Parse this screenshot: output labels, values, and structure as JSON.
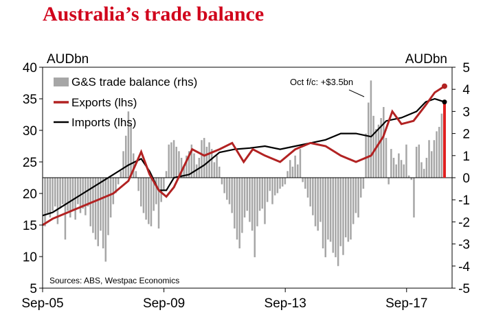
{
  "chart_data": {
    "type": "line",
    "title": "Australia’s trade balance",
    "left_unit": "AUDbn",
    "right_unit": "AUDbn",
    "left_ylim": [
      5,
      40
    ],
    "right_ylim": [
      -5,
      5
    ],
    "left_ticks": [
      "40",
      "35",
      "30",
      "25",
      "20",
      "15",
      "10",
      "5"
    ],
    "left_tick_values": [
      40,
      35,
      30,
      25,
      20,
      15,
      10,
      5
    ],
    "right_ticks": [
      "5",
      "4",
      "3",
      "2",
      "1",
      "0",
      "-1",
      "-2",
      "-3",
      "-4",
      "-5"
    ],
    "right_tick_values": [
      5,
      4,
      3,
      2,
      1,
      0,
      -1,
      -2,
      -3,
      -4,
      -5
    ],
    "x_range": [
      2005.67,
      2019.17
    ],
    "x_ticks": [
      "Sep-05",
      "Sep-09",
      "Sep-13",
      "Sep-17"
    ],
    "x_tick_values": [
      2005.67,
      2009.67,
      2013.67,
      2017.67
    ],
    "legend": {
      "balance": "G&S trade balance (rhs)",
      "exports": "Exports (lhs)",
      "imports": "Imports (lhs)"
    },
    "annotation": "Oct f/c: +$3.5bn",
    "source": "Sources: ABS, Westpac Economics",
    "colors": {
      "balance": "#a6a6a6",
      "exports": "#b22222",
      "imports": "#000000",
      "forecast": "#e02020",
      "title": "#d0021b"
    },
    "exports_series": [
      [
        2005.67,
        15.0
      ],
      [
        2006.0,
        16.0
      ],
      [
        2006.5,
        17.0
      ],
      [
        2007.0,
        18.0
      ],
      [
        2007.5,
        19.0
      ],
      [
        2008.0,
        20.0
      ],
      [
        2008.5,
        22.0
      ],
      [
        2008.92,
        26.6
      ],
      [
        2009.2,
        23.0
      ],
      [
        2009.5,
        20.5
      ],
      [
        2009.75,
        19.5
      ],
      [
        2010.0,
        21.0
      ],
      [
        2010.3,
        24.0
      ],
      [
        2010.6,
        27.0
      ],
      [
        2011.0,
        26.0
      ],
      [
        2011.5,
        27.0
      ],
      [
        2011.92,
        28.0
      ],
      [
        2012.3,
        25.0
      ],
      [
        2012.6,
        27.0
      ],
      [
        2013.0,
        26.0
      ],
      [
        2013.5,
        25.0
      ],
      [
        2014.0,
        27.0
      ],
      [
        2014.5,
        28.0
      ],
      [
        2015.0,
        27.5
      ],
      [
        2015.5,
        26.0
      ],
      [
        2016.0,
        25.0
      ],
      [
        2016.5,
        26.0
      ],
      [
        2016.9,
        29.0
      ],
      [
        2017.2,
        33.0
      ],
      [
        2017.5,
        31.0
      ],
      [
        2017.9,
        31.5
      ],
      [
        2018.3,
        34.0
      ],
      [
        2018.6,
        36.0
      ],
      [
        2018.92,
        37.0
      ]
    ],
    "imports_series": [
      [
        2005.67,
        16.5
      ],
      [
        2006.0,
        17.0
      ],
      [
        2006.5,
        18.5
      ],
      [
        2007.0,
        20.0
      ],
      [
        2007.5,
        21.5
      ],
      [
        2008.0,
        23.0
      ],
      [
        2008.5,
        24.5
      ],
      [
        2008.92,
        25.5
      ],
      [
        2009.2,
        23.5
      ],
      [
        2009.5,
        20.5
      ],
      [
        2009.75,
        20.5
      ],
      [
        2010.0,
        22.5
      ],
      [
        2010.5,
        23.0
      ],
      [
        2011.0,
        24.5
      ],
      [
        2011.5,
        26.5
      ],
      [
        2012.0,
        27.0
      ],
      [
        2012.5,
        27.2
      ],
      [
        2013.0,
        27.5
      ],
      [
        2013.5,
        27.0
      ],
      [
        2014.0,
        27.5
      ],
      [
        2014.5,
        28.0
      ],
      [
        2015.0,
        28.5
      ],
      [
        2015.5,
        29.5
      ],
      [
        2016.0,
        29.5
      ],
      [
        2016.5,
        29.0
      ],
      [
        2017.0,
        31.5
      ],
      [
        2017.5,
        32.0
      ],
      [
        2018.0,
        33.0
      ],
      [
        2018.3,
        34.5
      ],
      [
        2018.6,
        35.0
      ],
      [
        2018.92,
        34.5
      ]
    ],
    "balance_bars": {
      "start": 2005.75,
      "step": 0.0833,
      "values": [
        -2.2,
        -1.6,
        -1.8,
        -1.5,
        -1.3,
        -2.1,
        -1.4,
        -1.2,
        -2.8,
        -1.5,
        -1.8,
        -1.5,
        -1.9,
        -1.2,
        -1.6,
        -1.4,
        -1.7,
        -1.3,
        -2.2,
        -2.5,
        -2.8,
        -3.1,
        -2.4,
        -3.2,
        -3.8,
        -2.6,
        -1.8,
        -1.2,
        -0.7,
        -0.3,
        0.3,
        1.2,
        1.9,
        3.0,
        2.4,
        1.1,
        0.3,
        -0.6,
        -1.3,
        -1.6,
        -1.9,
        -2.1,
        -2.2,
        -1.5,
        -1.2,
        -2.3,
        -1.1,
        -0.6,
        0.3,
        1.5,
        1.6,
        1.7,
        1.4,
        1.2,
        0.9,
        0.5,
        1.0,
        1.2,
        1.5,
        1.1,
        0.6,
        0.9,
        1.7,
        1.8,
        1.4,
        1.6,
        1.3,
        0.7,
        1.0,
        0.5,
        -0.3,
        -0.7,
        -1.0,
        -1.2,
        -1.6,
        -2.3,
        -2.8,
        -3.2,
        -2.5,
        -1.8,
        -1.5,
        -2.0,
        -2.4,
        -3.6,
        -2.2,
        -1.5,
        -1.4,
        -2.1,
        -1.1,
        -0.6,
        -1.2,
        -0.8,
        -0.7,
        -0.5,
        -0.4,
        -0.3,
        0.3,
        0.8,
        0.5,
        1.0,
        0.6,
        1.3,
        -0.2,
        -0.5,
        -0.9,
        -1.3,
        -1.7,
        -2.2,
        -2.4,
        -2.0,
        -3.2,
        -3.6,
        -2.8,
        -2.9,
        -3.4,
        -3.6,
        -4.0,
        -3.1,
        -3.5,
        -2.7,
        -2.9,
        -2.8,
        -2.1,
        -1.6,
        -1.8,
        -0.9,
        -0.5,
        2.0,
        3.4,
        4.4,
        2.8,
        2.2,
        2.4,
        2.7,
        3.2,
        1.8,
        -0.3,
        1.3,
        0.9,
        0.6,
        1.1,
        0.8,
        0.6,
        1.5,
        0.1,
        -0.1,
        -1.8,
        1.4,
        1.5,
        0.7,
        0.4,
        0.9,
        1.7,
        1.2,
        1.7,
        2.1,
        2.3,
        2.9,
        2.6
      ]
    },
    "forecast": [
      2018.92,
      3.5
    ]
  }
}
